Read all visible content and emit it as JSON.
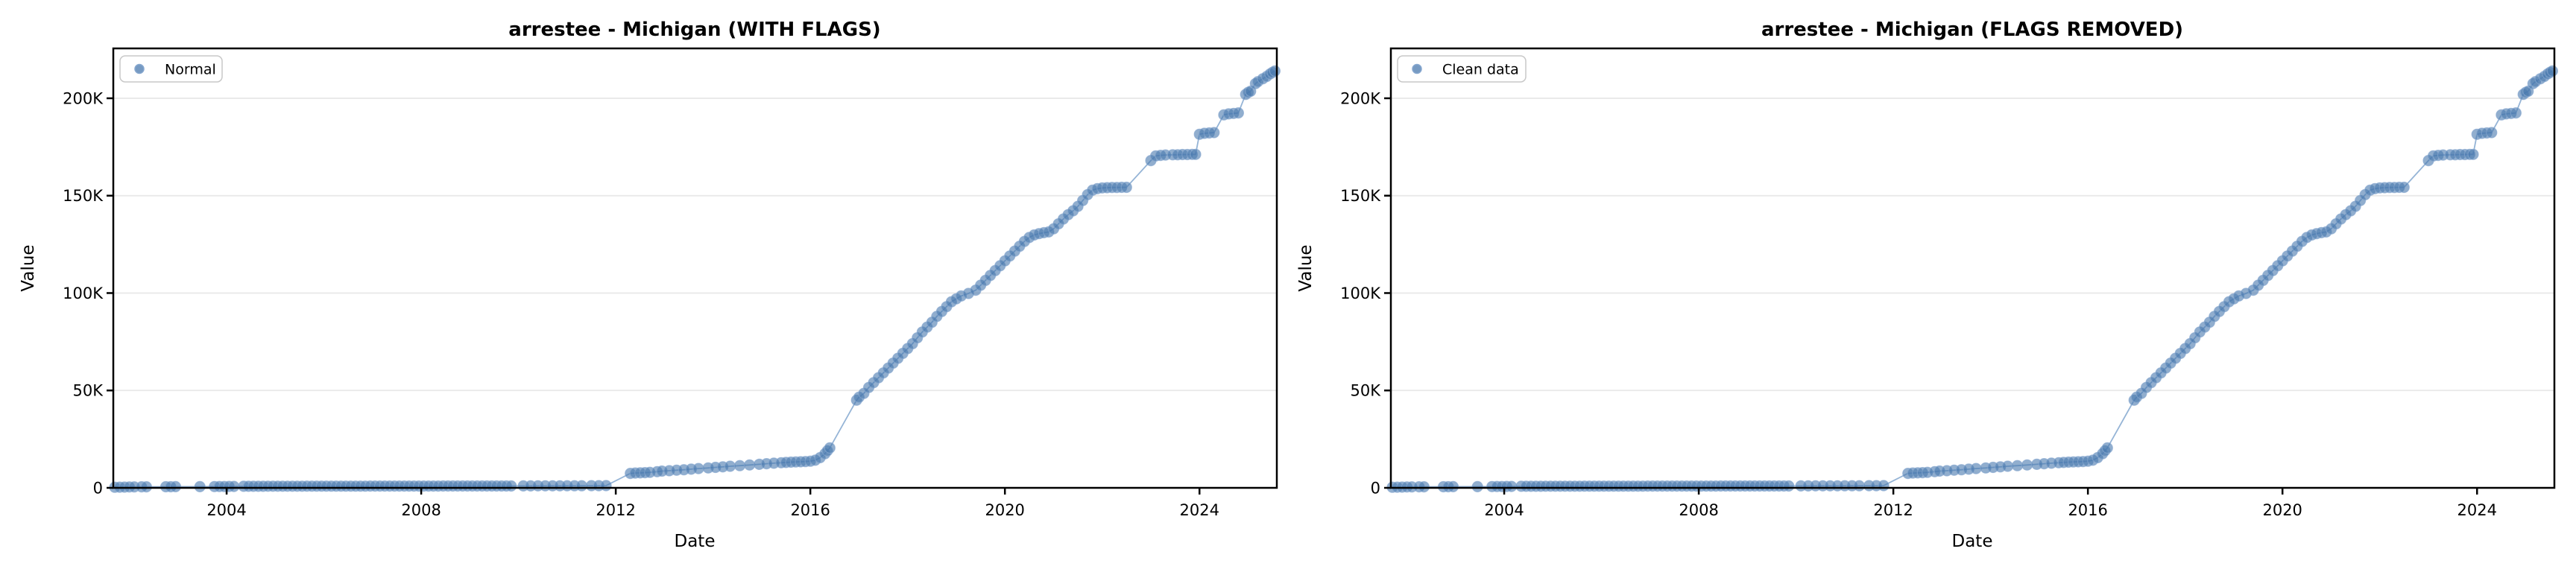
{
  "figure": {
    "background": "#ffffff",
    "description": "Two side-by-side scatter plots comparing the same cumulative series before and after flag removal"
  },
  "chart_data": {
    "type": "scatter",
    "charts": [
      {
        "title": "arrestee - Michigan (WITH FLAGS)",
        "legend": [
          {
            "label": "Normal",
            "marker": "circle"
          }
        ],
        "legend_position": "upper left"
      },
      {
        "title": "arrestee - Michigan (FLAGS REMOVED)",
        "legend": [
          {
            "label": "Clean data",
            "marker": "circle"
          }
        ],
        "legend_position": "upper left"
      }
    ],
    "axes": {
      "xlabel": "Date",
      "ylabel": "Value",
      "xlim": [
        2001.67,
        2025.59
      ],
      "ylim": [
        0,
        225600
      ],
      "x_ticks": [
        {
          "value": 2004,
          "label": "2004"
        },
        {
          "value": 2008,
          "label": "2008"
        },
        {
          "value": 2012,
          "label": "2012"
        },
        {
          "value": 2016,
          "label": "2016"
        },
        {
          "value": 2020,
          "label": "2020"
        },
        {
          "value": 2024,
          "label": "2024"
        }
      ],
      "y_ticks": [
        {
          "value": 0,
          "label": "0"
        },
        {
          "value": 50000,
          "label": "50K"
        },
        {
          "value": 100000,
          "label": "100K"
        },
        {
          "value": 150000,
          "label": "150K"
        },
        {
          "value": 200000,
          "label": "200K"
        }
      ],
      "grid": "horizontal"
    },
    "colors": {
      "marker_fill": "#4878ae",
      "marker_edge": "#86a7cf",
      "line": "#8fb0d4",
      "grid": "#e8e8e8",
      "spine": "#000000",
      "legend_border": "#c8c8c8",
      "text": "#000000"
    },
    "shared_series": {
      "note": "Both charts display this same point set (x = decimal year, y = value)",
      "points": [
        [
          2001.7,
          300
        ],
        [
          2001.8,
          350
        ],
        [
          2001.9,
          400
        ],
        [
          2002.0,
          450
        ],
        [
          2002.1,
          500
        ],
        [
          2002.25,
          520
        ],
        [
          2002.35,
          550
        ],
        [
          2002.75,
          560
        ],
        [
          2002.85,
          580
        ],
        [
          2002.95,
          600
        ],
        [
          2003.45,
          620
        ],
        [
          2003.75,
          650
        ],
        [
          2003.85,
          680
        ],
        [
          2003.95,
          700
        ],
        [
          2004.05,
          720
        ],
        [
          2004.15,
          740
        ],
        [
          2004.35,
          800
        ],
        [
          2004.45,
          805
        ],
        [
          2004.55,
          810
        ],
        [
          2004.65,
          815
        ],
        [
          2004.75,
          820
        ],
        [
          2004.85,
          825
        ],
        [
          2004.95,
          830
        ],
        [
          2005.05,
          835
        ],
        [
          2005.15,
          840
        ],
        [
          2005.25,
          845
        ],
        [
          2005.35,
          850
        ],
        [
          2005.45,
          854
        ],
        [
          2005.55,
          858
        ],
        [
          2005.65,
          862
        ],
        [
          2005.75,
          865
        ],
        [
          2005.85,
          868
        ],
        [
          2005.95,
          872
        ],
        [
          2006.05,
          875
        ],
        [
          2006.15,
          878
        ],
        [
          2006.25,
          882
        ],
        [
          2006.35,
          885
        ],
        [
          2006.45,
          888
        ],
        [
          2006.55,
          890
        ],
        [
          2006.65,
          893
        ],
        [
          2006.75,
          896
        ],
        [
          2006.85,
          898
        ],
        [
          2006.95,
          900
        ],
        [
          2007.05,
          903
        ],
        [
          2007.15,
          906
        ],
        [
          2007.25,
          908
        ],
        [
          2007.35,
          910
        ],
        [
          2007.45,
          913
        ],
        [
          2007.55,
          915
        ],
        [
          2007.65,
          918
        ],
        [
          2007.75,
          920
        ],
        [
          2007.85,
          922
        ],
        [
          2007.95,
          925
        ],
        [
          2008.05,
          928
        ],
        [
          2008.15,
          930
        ],
        [
          2008.25,
          932
        ],
        [
          2008.35,
          935
        ],
        [
          2008.45,
          938
        ],
        [
          2008.55,
          940
        ],
        [
          2008.65,
          942
        ],
        [
          2008.75,
          945
        ],
        [
          2008.85,
          948
        ],
        [
          2008.95,
          950
        ],
        [
          2009.05,
          952
        ],
        [
          2009.15,
          955
        ],
        [
          2009.25,
          958
        ],
        [
          2009.35,
          960
        ],
        [
          2009.45,
          962
        ],
        [
          2009.55,
          965
        ],
        [
          2009.65,
          968
        ],
        [
          2009.75,
          970
        ],
        [
          2009.85,
          972
        ],
        [
          2010.1,
          1000
        ],
        [
          2010.25,
          1010
        ],
        [
          2010.4,
          1020
        ],
        [
          2010.55,
          1030
        ],
        [
          2010.7,
          1040
        ],
        [
          2010.85,
          1050
        ],
        [
          2011.0,
          1060
        ],
        [
          2011.15,
          1070
        ],
        [
          2011.3,
          1080
        ],
        [
          2011.5,
          1100
        ],
        [
          2011.65,
          1120
        ],
        [
          2011.8,
          1150
        ],
        [
          2012.3,
          7400
        ],
        [
          2012.4,
          7600
        ],
        [
          2012.5,
          7700
        ],
        [
          2012.6,
          7800
        ],
        [
          2012.7,
          7950
        ],
        [
          2012.85,
          8300
        ],
        [
          2012.95,
          8600
        ],
        [
          2013.1,
          8800
        ],
        [
          2013.25,
          9050
        ],
        [
          2013.4,
          9300
        ],
        [
          2013.55,
          9600
        ],
        [
          2013.7,
          9900
        ],
        [
          2013.9,
          10200
        ],
        [
          2014.05,
          10500
        ],
        [
          2014.2,
          10800
        ],
        [
          2014.35,
          11100
        ],
        [
          2014.55,
          11400
        ],
        [
          2014.75,
          11750
        ],
        [
          2014.95,
          12100
        ],
        [
          2015.1,
          12400
        ],
        [
          2015.25,
          12650
        ],
        [
          2015.4,
          12900
        ],
        [
          2015.5,
          13050
        ],
        [
          2015.6,
          13200
        ],
        [
          2015.7,
          13300
        ],
        [
          2015.8,
          13400
        ],
        [
          2015.9,
          13500
        ],
        [
          2016.0,
          13700
        ],
        [
          2016.1,
          14200
        ],
        [
          2016.2,
          15500
        ],
        [
          2016.3,
          17500
        ],
        [
          2016.35,
          19000
        ],
        [
          2016.4,
          20500
        ],
        [
          2016.95,
          45000
        ],
        [
          2017.0,
          46500
        ],
        [
          2017.1,
          48500
        ],
        [
          2017.2,
          51500
        ],
        [
          2017.3,
          54000
        ],
        [
          2017.4,
          56500
        ],
        [
          2017.5,
          59000
        ],
        [
          2017.6,
          61500
        ],
        [
          2017.7,
          64000
        ],
        [
          2017.8,
          66500
        ],
        [
          2017.9,
          69000
        ],
        [
          2018.0,
          71500
        ],
        [
          2018.1,
          74000
        ],
        [
          2018.2,
          77000
        ],
        [
          2018.3,
          80000
        ],
        [
          2018.4,
          82500
        ],
        [
          2018.5,
          85000
        ],
        [
          2018.6,
          88000
        ],
        [
          2018.7,
          90500
        ],
        [
          2018.8,
          93000
        ],
        [
          2018.9,
          95500
        ],
        [
          2019.0,
          97000
        ],
        [
          2019.1,
          98500
        ],
        [
          2019.25,
          99800
        ],
        [
          2019.4,
          101500
        ],
        [
          2019.5,
          104000
        ],
        [
          2019.6,
          106500
        ],
        [
          2019.7,
          109000
        ],
        [
          2019.8,
          111500
        ],
        [
          2019.9,
          114000
        ],
        [
          2020.0,
          116500
        ],
        [
          2020.1,
          119000
        ],
        [
          2020.2,
          121500
        ],
        [
          2020.3,
          124000
        ],
        [
          2020.4,
          126500
        ],
        [
          2020.5,
          128500
        ],
        [
          2020.6,
          129800
        ],
        [
          2020.7,
          130500
        ],
        [
          2020.8,
          131000
        ],
        [
          2020.9,
          131400
        ],
        [
          2021.0,
          133000
        ],
        [
          2021.1,
          135500
        ],
        [
          2021.2,
          138000
        ],
        [
          2021.3,
          140200
        ],
        [
          2021.4,
          142200
        ],
        [
          2021.5,
          144500
        ],
        [
          2021.6,
          147500
        ],
        [
          2021.7,
          150500
        ],
        [
          2021.8,
          152800
        ],
        [
          2021.9,
          153600
        ],
        [
          2022.0,
          154000
        ],
        [
          2022.1,
          154100
        ],
        [
          2022.2,
          154200
        ],
        [
          2022.3,
          154200
        ],
        [
          2022.4,
          154300
        ],
        [
          2022.5,
          154300
        ],
        [
          2023.0,
          168000
        ],
        [
          2023.1,
          170400
        ],
        [
          2023.2,
          170700
        ],
        [
          2023.3,
          170900
        ],
        [
          2023.45,
          171000
        ],
        [
          2023.55,
          171000
        ],
        [
          2023.65,
          171100
        ],
        [
          2023.75,
          171100
        ],
        [
          2023.85,
          171200
        ],
        [
          2023.92,
          171200
        ],
        [
          2024.0,
          181500
        ],
        [
          2024.1,
          182000
        ],
        [
          2024.2,
          182200
        ],
        [
          2024.3,
          182400
        ],
        [
          2024.5,
          191500
        ],
        [
          2024.6,
          192000
        ],
        [
          2024.7,
          192200
        ],
        [
          2024.8,
          192500
        ],
        [
          2024.95,
          202000
        ],
        [
          2025.0,
          203000
        ],
        [
          2025.05,
          203600
        ],
        [
          2025.15,
          207500
        ],
        [
          2025.2,
          208500
        ],
        [
          2025.3,
          210000
        ],
        [
          2025.38,
          211200
        ],
        [
          2025.45,
          212500
        ],
        [
          2025.5,
          213300
        ],
        [
          2025.55,
          214000
        ]
      ]
    }
  }
}
